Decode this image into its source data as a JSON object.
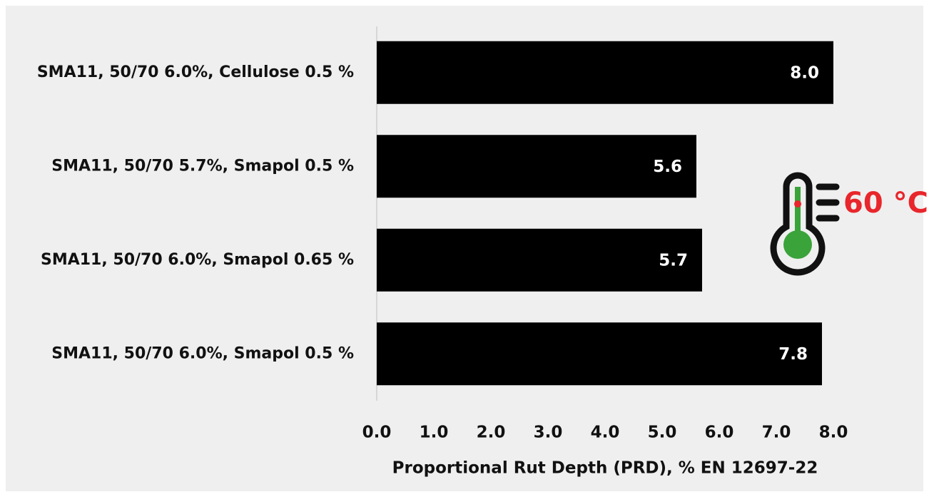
{
  "chart_data": {
    "type": "barh",
    "categories": [
      "SMA11, 50/70 6.0%, Cellulose 0.5 %",
      "SMA11, 50/70 5.7%, Smapol 0.5 %",
      "SMA11, 50/70 6.0%, Smapol 0.65 %",
      "SMA11, 50/70 6.0%, Smapol 0.5 %"
    ],
    "values": [
      8.0,
      5.6,
      5.7,
      7.8
    ],
    "value_labels": [
      "8.0",
      "5.6",
      "5.7",
      "7.8"
    ],
    "color": "#000000",
    "xlabel": "Proportional Rut Depth (PRD), % EN 12697-22",
    "xlim": [
      0,
      8
    ],
    "xticks": [
      {
        "value": 0,
        "label": "0.0"
      },
      {
        "value": 1,
        "label": "1.0"
      },
      {
        "value": 2,
        "label": "2.0"
      },
      {
        "value": 3,
        "label": "3.0"
      },
      {
        "value": 4,
        "label": "4.0"
      },
      {
        "value": 5,
        "label": "5.0"
      },
      {
        "value": 6,
        "label": "6.0"
      },
      {
        "value": 7,
        "label": "7.0"
      },
      {
        "value": 8,
        "label": "8.0"
      }
    ],
    "annotation": "60 °C",
    "annotation_color": "#e8262b"
  }
}
